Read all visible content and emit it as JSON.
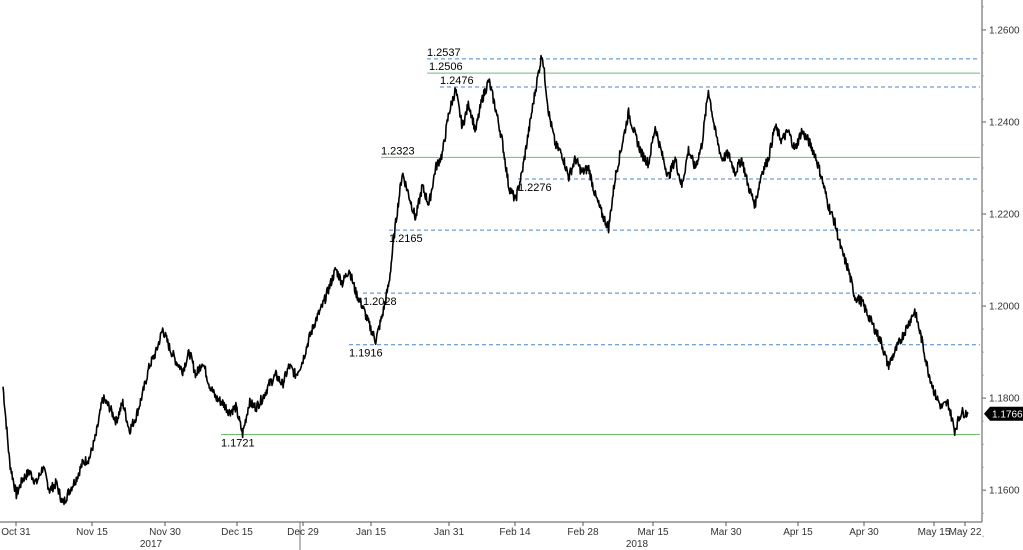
{
  "chart_data": {
    "type": "line",
    "title": "",
    "xlabel": "",
    "ylabel": "",
    "ylim": [
      1.147,
      1.2665
    ],
    "y_ticks": [
      "1.1600",
      "1.1800",
      "1.2000",
      "1.2200",
      "1.2400",
      "1.2600"
    ],
    "x_tick_labels": [
      "Oct 31",
      "Nov 15",
      "Nov 30",
      "Dec 15",
      "Dec 29",
      "Jan 15",
      "Jan 31",
      "Feb 14",
      "Feb 28",
      "Mar 15",
      "Mar 30",
      "Apr 15",
      "Apr 30",
      "May 15",
      "May 22"
    ],
    "year_labels": [
      "2017",
      "2018"
    ],
    "last_price": {
      "value": 1.1766,
      "label": "1.1766",
      "color": "#000000"
    },
    "grid": false,
    "line_color": "#000000",
    "series": [
      {
        "values": [
          {
            "t": 0,
            "y": 1.1825
          },
          {
            "t": 2,
            "y": 1.166
          },
          {
            "t": 4,
            "y": 1.159
          },
          {
            "t": 6,
            "y": 1.1625
          },
          {
            "t": 8,
            "y": 1.164
          },
          {
            "t": 10,
            "y": 1.1615
          },
          {
            "t": 12,
            "y": 1.165
          },
          {
            "t": 14,
            "y": 1.16
          },
          {
            "t": 16,
            "y": 1.1615
          },
          {
            "t": 18,
            "y": 1.157
          },
          {
            "t": 20,
            "y": 1.16
          },
          {
            "t": 22,
            "y": 1.1625
          },
          {
            "t": 24,
            "y": 1.166
          },
          {
            "t": 26,
            "y": 1.167
          },
          {
            "t": 28,
            "y": 1.172
          },
          {
            "t": 30,
            "y": 1.18
          },
          {
            "t": 32,
            "y": 1.178
          },
          {
            "t": 34,
            "y": 1.175
          },
          {
            "t": 36,
            "y": 1.179
          },
          {
            "t": 38,
            "y": 1.173
          },
          {
            "t": 40,
            "y": 1.176
          },
          {
            "t": 42,
            "y": 1.181
          },
          {
            "t": 44,
            "y": 1.187
          },
          {
            "t": 46,
            "y": 1.19
          },
          {
            "t": 48,
            "y": 1.195
          },
          {
            "t": 50,
            "y": 1.191
          },
          {
            "t": 52,
            "y": 1.188
          },
          {
            "t": 54,
            "y": 1.186
          },
          {
            "t": 56,
            "y": 1.19
          },
          {
            "t": 58,
            "y": 1.185
          },
          {
            "t": 60,
            "y": 1.188
          },
          {
            "t": 62,
            "y": 1.183
          },
          {
            "t": 64,
            "y": 1.18
          },
          {
            "t": 66,
            "y": 1.179
          },
          {
            "t": 68,
            "y": 1.177
          },
          {
            "t": 70,
            "y": 1.178
          },
          {
            "t": 72,
            "y": 1.1722
          },
          {
            "t": 74,
            "y": 1.179
          },
          {
            "t": 76,
            "y": 1.178
          },
          {
            "t": 78,
            "y": 1.18
          },
          {
            "t": 80,
            "y": 1.183
          },
          {
            "t": 82,
            "y": 1.185
          },
          {
            "t": 84,
            "y": 1.183
          },
          {
            "t": 86,
            "y": 1.187
          },
          {
            "t": 88,
            "y": 1.185
          },
          {
            "t": 90,
            "y": 1.188
          },
          {
            "t": 92,
            "y": 1.193
          },
          {
            "t": 94,
            "y": 1.197
          },
          {
            "t": 96,
            "y": 1.2
          },
          {
            "t": 98,
            "y": 1.204
          },
          {
            "t": 100,
            "y": 1.208
          },
          {
            "t": 102,
            "y": 1.205
          },
          {
            "t": 104,
            "y": 1.208
          },
          {
            "t": 106,
            "y": 1.203
          },
          {
            "t": 108,
            "y": 1.2
          },
          {
            "t": 110,
            "y": 1.196
          },
          {
            "t": 112,
            "y": 1.1925
          },
          {
            "t": 114,
            "y": 1.198
          },
          {
            "t": 116,
            "y": 1.205
          },
          {
            "t": 118,
            "y": 1.218
          },
          {
            "t": 120,
            "y": 1.229
          },
          {
            "t": 122,
            "y": 1.224
          },
          {
            "t": 124,
            "y": 1.219
          },
          {
            "t": 126,
            "y": 1.226
          },
          {
            "t": 128,
            "y": 1.222
          },
          {
            "t": 130,
            "y": 1.23
          },
          {
            "t": 132,
            "y": 1.233
          },
          {
            "t": 134,
            "y": 1.242
          },
          {
            "t": 136,
            "y": 1.247
          },
          {
            "t": 138,
            "y": 1.239
          },
          {
            "t": 140,
            "y": 1.244
          },
          {
            "t": 142,
            "y": 1.238
          },
          {
            "t": 144,
            "y": 1.245
          },
          {
            "t": 146,
            "y": 1.249
          },
          {
            "t": 148,
            "y": 1.243
          },
          {
            "t": 150,
            "y": 1.236
          },
          {
            "t": 152,
            "y": 1.226
          },
          {
            "t": 154,
            "y": 1.223
          },
          {
            "t": 156,
            "y": 1.229
          },
          {
            "t": 158,
            "y": 1.238
          },
          {
            "t": 160,
            "y": 1.247
          },
          {
            "t": 162,
            "y": 1.255
          },
          {
            "t": 164,
            "y": 1.242
          },
          {
            "t": 166,
            "y": 1.235
          },
          {
            "t": 168,
            "y": 1.233
          },
          {
            "t": 170,
            "y": 1.228
          },
          {
            "t": 172,
            "y": 1.232
          },
          {
            "t": 174,
            "y": 1.229
          },
          {
            "t": 176,
            "y": 1.23
          },
          {
            "t": 178,
            "y": 1.224
          },
          {
            "t": 180,
            "y": 1.22
          },
          {
            "t": 182,
            "y": 1.217
          },
          {
            "t": 184,
            "y": 1.228
          },
          {
            "t": 186,
            "y": 1.235
          },
          {
            "t": 188,
            "y": 1.242
          },
          {
            "t": 190,
            "y": 1.237
          },
          {
            "t": 192,
            "y": 1.233
          },
          {
            "t": 194,
            "y": 1.231
          },
          {
            "t": 196,
            "y": 1.239
          },
          {
            "t": 198,
            "y": 1.233
          },
          {
            "t": 200,
            "y": 1.228
          },
          {
            "t": 202,
            "y": 1.232
          },
          {
            "t": 204,
            "y": 1.226
          },
          {
            "t": 206,
            "y": 1.234
          },
          {
            "t": 208,
            "y": 1.23
          },
          {
            "t": 210,
            "y": 1.235
          },
          {
            "t": 212,
            "y": 1.247
          },
          {
            "t": 214,
            "y": 1.238
          },
          {
            "t": 216,
            "y": 1.232
          },
          {
            "t": 218,
            "y": 1.233
          },
          {
            "t": 220,
            "y": 1.229
          },
          {
            "t": 222,
            "y": 1.232
          },
          {
            "t": 224,
            "y": 1.226
          },
          {
            "t": 226,
            "y": 1.222
          },
          {
            "t": 228,
            "y": 1.229
          },
          {
            "t": 230,
            "y": 1.232
          },
          {
            "t": 232,
            "y": 1.239
          },
          {
            "t": 234,
            "y": 1.236
          },
          {
            "t": 236,
            "y": 1.238
          },
          {
            "t": 238,
            "y": 1.234
          },
          {
            "t": 240,
            "y": 1.238
          },
          {
            "t": 242,
            "y": 1.236
          },
          {
            "t": 244,
            "y": 1.233
          },
          {
            "t": 246,
            "y": 1.228
          },
          {
            "t": 248,
            "y": 1.222
          },
          {
            "t": 250,
            "y": 1.218
          },
          {
            "t": 252,
            "y": 1.212
          },
          {
            "t": 254,
            "y": 1.208
          },
          {
            "t": 256,
            "y": 1.202
          },
          {
            "t": 258,
            "y": 1.201
          },
          {
            "t": 260,
            "y": 1.198
          },
          {
            "t": 262,
            "y": 1.195
          },
          {
            "t": 264,
            "y": 1.192
          },
          {
            "t": 266,
            "y": 1.187
          },
          {
            "t": 268,
            "y": 1.19
          },
          {
            "t": 270,
            "y": 1.193
          },
          {
            "t": 272,
            "y": 1.196
          },
          {
            "t": 274,
            "y": 1.199
          },
          {
            "t": 276,
            "y": 1.193
          },
          {
            "t": 278,
            "y": 1.186
          },
          {
            "t": 280,
            "y": 1.181
          },
          {
            "t": 282,
            "y": 1.178
          },
          {
            "t": 284,
            "y": 1.179
          },
          {
            "t": 286,
            "y": 1.173
          },
          {
            "t": 288,
            "y": 1.177
          },
          {
            "t": 290,
            "y": 1.1766
          }
        ]
      }
    ],
    "levels": [
      {
        "value": 1.2537,
        "label": "1.2537",
        "style": "dashed",
        "color": "#4a86c8"
      },
      {
        "value": 1.2506,
        "label": "1.2506",
        "style": "solid",
        "color": "#6cbf6c"
      },
      {
        "value": 1.2476,
        "label": "1.2476",
        "style": "dashed",
        "color": "#4a86c8"
      },
      {
        "value": 1.2323,
        "label": "1.2323",
        "style": "solid",
        "color": "#6cbf6c"
      },
      {
        "value": 1.2276,
        "label": "1.2276",
        "style": "dashed",
        "color": "#4a86c8"
      },
      {
        "value": 1.2165,
        "label": "1.2165",
        "style": "dashed",
        "color": "#4a86c8"
      },
      {
        "value": 1.2028,
        "label": "1.2028",
        "style": "dashed",
        "color": "#4a86c8"
      },
      {
        "value": 1.1916,
        "label": "1.1916",
        "style": "dashed",
        "color": "#4a86c8"
      },
      {
        "value": 1.1721,
        "label": "1.1721",
        "style": "solid",
        "color": "#6cbf6c"
      }
    ]
  }
}
